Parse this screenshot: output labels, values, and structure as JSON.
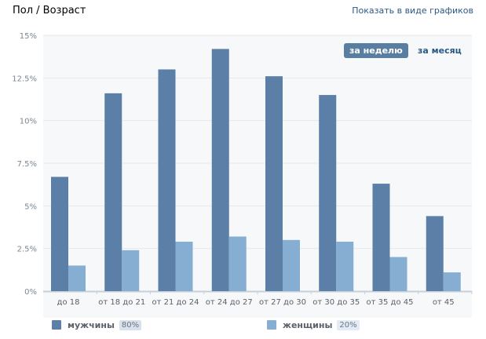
{
  "header": {
    "title": "Пол / Возраст",
    "link": "Показать в виде графиков"
  },
  "period": {
    "active": "за неделю",
    "inactive": "за месяц"
  },
  "colors": {
    "male": "#5b7fa6",
    "female": "#86aed3",
    "male_badge_bg": "#d9e2ec",
    "female_badge_bg": "#e2ecf6",
    "link": "#2a5885"
  },
  "legend": [
    {
      "label": "мужчины",
      "pct": "80%"
    },
    {
      "label": "женщины",
      "pct": "20%"
    }
  ],
  "chart_data": {
    "type": "bar",
    "categories": [
      "до 18",
      "от 18 до 21",
      "от 21 до 24",
      "от 24 до 27",
      "от 27 до 30",
      "от 30 до 35",
      "от 35 до 45",
      "от 45"
    ],
    "series": [
      {
        "name": "мужчины",
        "values": [
          6.7,
          11.6,
          13.0,
          14.2,
          12.6,
          11.5,
          6.3,
          4.4
        ]
      },
      {
        "name": "женщины",
        "values": [
          1.5,
          2.4,
          2.9,
          3.2,
          3.0,
          2.9,
          2.0,
          1.1
        ]
      }
    ],
    "ylim": [
      0,
      15
    ],
    "yticks": [
      "0%",
      "2.5%",
      "5%",
      "7.5%",
      "10%",
      "12.5%",
      "15%"
    ],
    "grid": true
  }
}
